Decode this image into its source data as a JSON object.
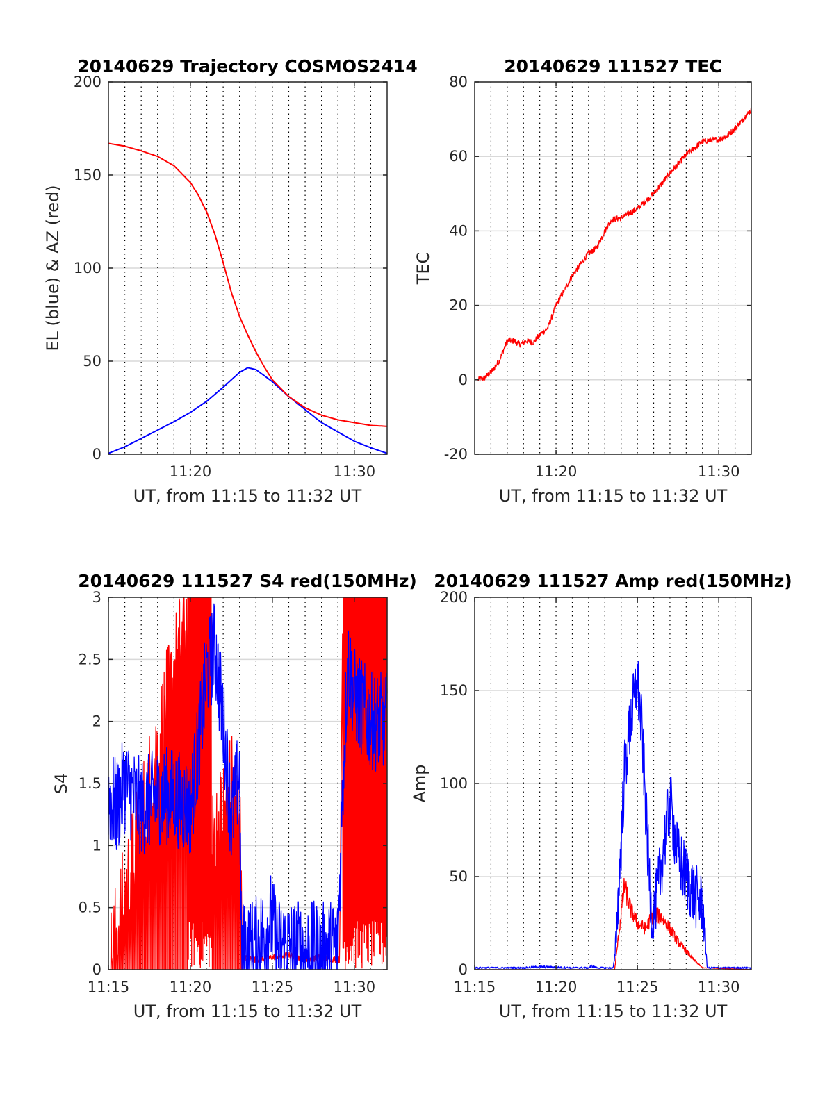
{
  "colors": {
    "el_series": "#0000ff",
    "az_series": "#ff0000",
    "tec_series": "#ff0000",
    "blue_series": "#0000ff",
    "red_series": "#ff0000",
    "axes": "#262626",
    "grid": "#d9d9d9",
    "minor_grid": "#000000"
  },
  "chart_data": [
    {
      "id": "trajectory",
      "type": "line",
      "title": "20140629 Trajectory COSMOS2414",
      "xlabel": "UT, from 11:15 to 11:32 UT",
      "ylabel": "EL (blue) & AZ (red)",
      "xlim": [
        0,
        17
      ],
      "ylim": [
        0,
        200
      ],
      "xticks": [
        {
          "v": 5,
          "label": "11:20"
        },
        {
          "v": 15,
          "label": "11:30"
        }
      ],
      "yticks": [
        {
          "v": 0,
          "label": "0"
        },
        {
          "v": 50,
          "label": "50"
        },
        {
          "v": 100,
          "label": "100"
        },
        {
          "v": 150,
          "label": "150"
        },
        {
          "v": 200,
          "label": "200"
        }
      ],
      "x_units": "minutes after 11:15 UT",
      "grid": "major y gridlines, dotted minor x gridlines every 1 min",
      "series": [
        {
          "color": "#0000ff",
          "x": [
            0,
            1,
            2,
            3,
            4,
            5,
            6,
            7,
            7.5,
            8,
            8.5,
            9,
            10,
            11,
            12,
            13,
            14,
            15,
            16,
            17
          ],
          "y": [
            0.5,
            4,
            8.5,
            13,
            17.5,
            22.5,
            28.5,
            36,
            40,
            44,
            46.5,
            45.5,
            39,
            31,
            24,
            17,
            12,
            7,
            3.5,
            0.5
          ]
        },
        {
          "color": "#ff0000",
          "x": [
            0,
            1,
            2,
            3,
            4,
            5,
            5.5,
            6,
            6.5,
            7,
            7.5,
            8,
            8.5,
            9,
            9.5,
            10,
            11,
            12,
            13,
            14,
            15,
            16,
            17
          ],
          "y": [
            167,
            165.5,
            163,
            160,
            155,
            146,
            139,
            130,
            118,
            103,
            87,
            74,
            64,
            55,
            47,
            40,
            31,
            25,
            21,
            18.5,
            17,
            15.5,
            15
          ]
        }
      ]
    },
    {
      "id": "tec",
      "type": "line",
      "title": "20140629 111527 TEC",
      "xlabel": "UT, from 11:15 to 11:32 UT",
      "ylabel": "TEC",
      "xlim": [
        0,
        17
      ],
      "ylim": [
        -20,
        80
      ],
      "xticks": [
        {
          "v": 5,
          "label": "11:20"
        },
        {
          "v": 15,
          "label": "11:30"
        }
      ],
      "yticks": [
        {
          "v": -20,
          "label": "-20"
        },
        {
          "v": 0,
          "label": "0"
        },
        {
          "v": 20,
          "label": "20"
        },
        {
          "v": 40,
          "label": "40"
        },
        {
          "v": 60,
          "label": "60"
        },
        {
          "v": 80,
          "label": "80"
        }
      ],
      "x_units": "minutes after 11:15 UT",
      "grid": "major y gridlines, dotted minor x gridlines every 1 min",
      "series": [
        {
          "color": "#ff0000",
          "noise": 0.8,
          "x": [
            0.2,
            0.6,
            1,
            1.5,
            2,
            2.4,
            2.8,
            3.2,
            3.6,
            4,
            4.5,
            5,
            5.5,
            6,
            6.5,
            7,
            7.5,
            8,
            8.4,
            9,
            10,
            11,
            12,
            13,
            14,
            14.6,
            15,
            15.5,
            16,
            16.5,
            17
          ],
          "y": [
            0,
            0.5,
            2,
            5,
            10.5,
            10.5,
            9.5,
            10.5,
            10,
            12,
            14,
            20,
            24,
            28,
            31,
            34,
            35.5,
            40,
            43,
            43.5,
            46,
            50,
            55.5,
            60.5,
            64,
            64.5,
            64.5,
            65.5,
            67.5,
            70,
            72.5
          ]
        }
      ]
    },
    {
      "id": "s4",
      "type": "line",
      "title": "20140629 111527 S4 red(150MHz)",
      "xlabel": "UT, from 11:15 to 11:32 UT",
      "ylabel": "S4",
      "xlim": [
        0,
        17
      ],
      "ylim": [
        0,
        3
      ],
      "xticks": [
        {
          "v": 0,
          "label": "11:15"
        },
        {
          "v": 5,
          "label": "11:20"
        },
        {
          "v": 10,
          "label": "11:25"
        },
        {
          "v": 15,
          "label": "11:30"
        }
      ],
      "yticks": [
        {
          "v": 0,
          "label": "0"
        },
        {
          "v": 0.5,
          "label": "0.5"
        },
        {
          "v": 1,
          "label": "1"
        },
        {
          "v": 1.5,
          "label": "1.5"
        },
        {
          "v": 2,
          "label": "2"
        },
        {
          "v": 2.5,
          "label": "2.5"
        },
        {
          "v": 3,
          "label": "3"
        }
      ],
      "x_units": "minutes after 11:15 UT",
      "grid": "major y gridlines, dotted minor x gridlines every 1 min",
      "series": [
        {
          "color": "#ff0000",
          "style": "saturated-spikes",
          "x": [
            0,
            5,
            5.1,
            6.3,
            6.3,
            7.5,
            8.1,
            8.2,
            9,
            10,
            11,
            12,
            13,
            13.9,
            14.1,
            14.3,
            17
          ],
          "y": [
            0,
            3,
            3,
            3,
            1,
            1.5,
            1.1,
            0.1,
            0.08,
            0.1,
            0.12,
            0.08,
            0.1,
            0.08,
            0.08,
            3,
            3
          ]
        },
        {
          "color": "#0000ff",
          "noise": 0.4,
          "x": [
            0,
            0.5,
            1,
            2,
            3,
            4,
            5,
            5.5,
            6,
            6.5,
            7,
            7.5,
            8,
            8.1,
            8.3,
            9,
            9.5,
            9.9,
            10.3,
            11,
            12,
            13,
            13.5,
            14,
            14.3,
            14.6,
            15,
            16,
            17
          ],
          "y": [
            1.4,
            1.3,
            1.5,
            1.3,
            1.4,
            1.4,
            1.3,
            1.8,
            2.4,
            2.6,
            2.0,
            1.2,
            1.6,
            0.2,
            0.15,
            0.2,
            0.3,
            0.4,
            0.2,
            0.18,
            0.16,
            0.15,
            0.17,
            0.2,
            1.5,
            2.5,
            2.2,
            2.0,
            2.0
          ]
        }
      ]
    },
    {
      "id": "amp",
      "type": "line",
      "title": "20140629 111527 Amp red(150MHz)",
      "xlabel": "UT, from 11:15 to 11:32 UT",
      "ylabel": "Amp",
      "xlim": [
        0,
        17
      ],
      "ylim": [
        0,
        200
      ],
      "xticks": [
        {
          "v": 0,
          "label": "11:15"
        },
        {
          "v": 5,
          "label": "11:20"
        },
        {
          "v": 10,
          "label": "11:25"
        },
        {
          "v": 15,
          "label": "11:30"
        }
      ],
      "yticks": [
        {
          "v": 0,
          "label": "0"
        },
        {
          "v": 50,
          "label": "50"
        },
        {
          "v": 100,
          "label": "100"
        },
        {
          "v": 150,
          "label": "150"
        },
        {
          "v": 200,
          "label": "200"
        }
      ],
      "x_units": "minutes after 11:15 UT",
      "grid": "major y gridlines, dotted minor x gridlines every 1 min",
      "series": [
        {
          "color": "#ff0000",
          "noise": 6,
          "x": [
            0,
            8.6,
            8.8,
            9.2,
            9.6,
            10,
            10.5,
            11,
            11.5,
            12,
            12.5,
            13,
            13.5,
            14,
            17
          ],
          "y": [
            0,
            0,
            15,
            45,
            32,
            25,
            22,
            30,
            28,
            22,
            15,
            10,
            5,
            1,
            0
          ]
        },
        {
          "color": "#0000ff",
          "noise": 18,
          "x": [
            0,
            3,
            4,
            6,
            7,
            7.2,
            7.5,
            8.5,
            8.6,
            8.9,
            9.2,
            9.6,
            10,
            10.3,
            10.6,
            10.9,
            11.3,
            11.6,
            12,
            12.5,
            13,
            13.5,
            14,
            14.3,
            17
          ],
          "y": [
            1,
            1,
            1.5,
            1,
            1,
            2,
            1,
            1,
            5,
            50,
            105,
            135,
            155,
            125,
            70,
            25,
            45,
            65,
            90,
            60,
            50,
            40,
            35,
            1,
            1
          ]
        }
      ]
    }
  ]
}
